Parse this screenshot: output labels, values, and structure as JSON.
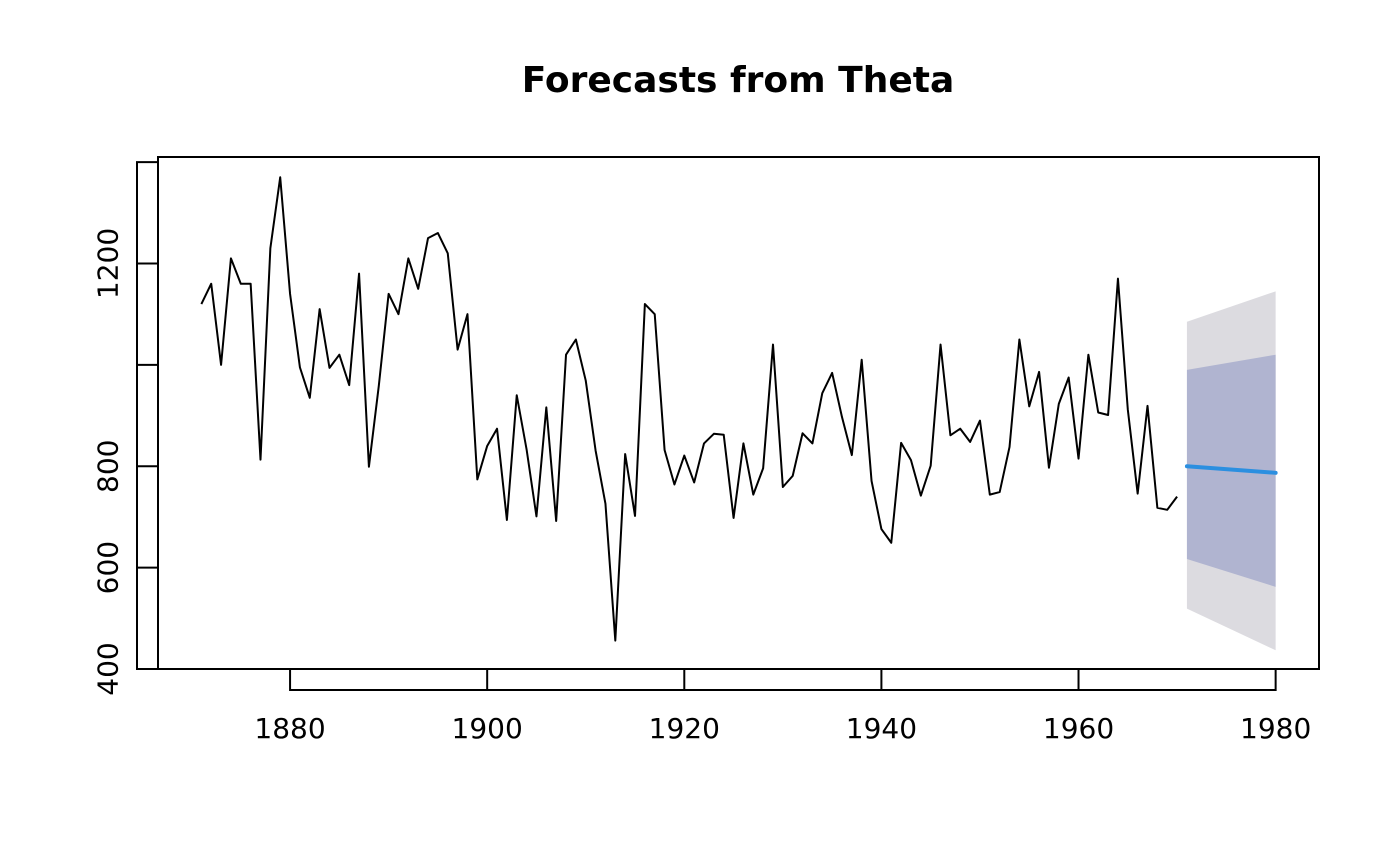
{
  "chart_data": {
    "type": "line",
    "title": "Forecasts from Theta",
    "xlabel": "",
    "ylabel": "",
    "xlim": [
      1866.6,
      1984.4
    ],
    "ylim": [
      400,
      1410
    ],
    "x_ticks": [
      "1880",
      "1900",
      "1920",
      "1940",
      "1960",
      "1980"
    ],
    "y_ticks": [
      "400",
      "600",
      "800",
      "1200"
    ],
    "y_tick_marks": [
      400,
      600,
      800,
      1000,
      1200,
      1400
    ],
    "grid": false,
    "legend": "none",
    "colors": {
      "history": "#000000",
      "forecast": "#2b8fe0",
      "band80": "#b0b4d0",
      "band95": "#dcdbe0"
    },
    "series": [
      {
        "x": [
          1871,
          1872,
          1873,
          1874,
          1875,
          1876,
          1877,
          1878,
          1879,
          1880,
          1881,
          1882,
          1883,
          1884,
          1885,
          1886,
          1887,
          1888,
          1889,
          1890,
          1891,
          1892,
          1893,
          1894,
          1895,
          1896,
          1897,
          1898,
          1899,
          1900,
          1901,
          1902,
          1903,
          1904,
          1905,
          1906,
          1907,
          1908,
          1909,
          1910,
          1911,
          1912,
          1913,
          1914,
          1915,
          1916,
          1917,
          1918,
          1919,
          1920,
          1921,
          1922,
          1923,
          1924,
          1925,
          1926,
          1927,
          1928,
          1929,
          1930,
          1931,
          1932,
          1933,
          1934,
          1935,
          1936,
          1937,
          1938,
          1939,
          1940,
          1941,
          1942,
          1943,
          1944,
          1945,
          1946,
          1947,
          1948,
          1949,
          1950,
          1951,
          1952,
          1953,
          1954,
          1955,
          1956,
          1957,
          1958,
          1959,
          1960,
          1961,
          1962,
          1963,
          1964,
          1965,
          1966,
          1967,
          1968,
          1969,
          1970
        ],
        "values": [
          1120,
          1160,
          1000,
          1210,
          1160,
          1160,
          813,
          1230,
          1370,
          1140,
          995,
          935,
          1110,
          994,
          1020,
          960,
          1180,
          799,
          958,
          1140,
          1100,
          1210,
          1150,
          1250,
          1260,
          1220,
          1030,
          1100,
          774,
          840,
          874,
          694,
          940,
          833,
          701,
          916,
          692,
          1020,
          1050,
          969,
          831,
          726,
          456,
          824,
          702,
          1120,
          1100,
          832,
          764,
          821,
          768,
          845,
          864,
          862,
          698,
          845,
          744,
          796,
          1040,
          759,
          781,
          865,
          845,
          944,
          984,
          897,
          822,
          1010,
          771,
          676,
          649,
          846,
          812,
          742,
          801,
          1040,
          861,
          874,
          848,
          890,
          744,
          749,
          838,
          1050,
          918,
          986,
          797,
          923,
          975,
          815,
          1020,
          906,
          901,
          1170,
          912,
          746,
          919,
          718,
          714,
          740
        ]
      }
    ],
    "forecast": {
      "x": [
        1971,
        1980
      ],
      "mean": [
        800,
        787
      ],
      "lo80": [
        617,
        562
      ],
      "hi80": [
        990,
        1020
      ],
      "lo95": [
        519,
        437
      ],
      "hi95": [
        1085,
        1145
      ]
    }
  }
}
